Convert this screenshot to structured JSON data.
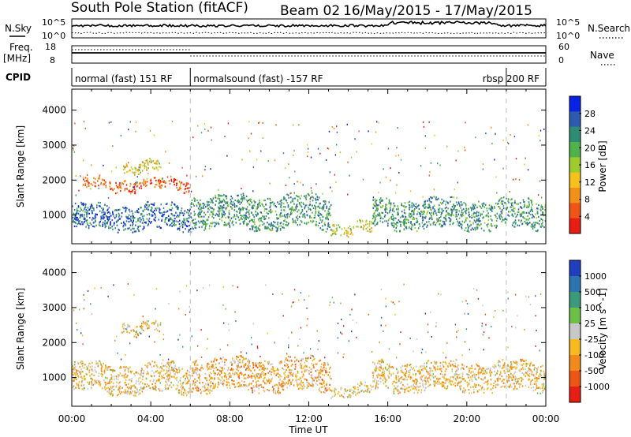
{
  "header": {
    "station": "South Pole Station (fitACF)",
    "beam": "Beam 02",
    "dates": "16/May/2015 - 17/May/2015"
  },
  "side_labels": {
    "n_sky": "N.Sky",
    "freq": "Freq.",
    "mhz": "[MHz]",
    "cpid": "CPID",
    "n_search": "N.Search",
    "nave": "Nave"
  },
  "mini_axes": {
    "n_sky_ticks": [
      "10^5",
      "10^0"
    ],
    "n_search_ticks": [
      "10^5",
      "10^0"
    ],
    "freq_ticks": [
      "18",
      "8"
    ],
    "nave_ticks": [
      "60",
      "0"
    ]
  },
  "cpid_segments": [
    {
      "label": "normal (fast) 151 RF",
      "start_h": 0,
      "end_h": 6
    },
    {
      "label": "normalsound (fast) -157 RF",
      "start_h": 6,
      "end_h": 22
    },
    {
      "label": "rbsp 200 RF",
      "start_h": 22,
      "end_h": 24
    }
  ],
  "x_axis": {
    "label": "Time UT",
    "ticks": [
      "00:00",
      "04:00",
      "08:00",
      "12:00",
      "16:00",
      "20:00",
      "00:00"
    ],
    "range_h": [
      0,
      24
    ]
  },
  "y_axis": {
    "label": "Slant Range [km]",
    "ticks": [
      "1000",
      "2000",
      "3000",
      "4000"
    ],
    "range_km": [
      180,
      4600
    ]
  },
  "power_colorbar": {
    "title": "Power [dB]",
    "ticks": [
      "4",
      "8",
      "12",
      "16",
      "20",
      "24",
      "28"
    ],
    "colors": [
      "#0a22e6",
      "#2c5bb0",
      "#2f8c74",
      "#4fb24a",
      "#9ccd2c",
      "#f6c11c",
      "#f39018",
      "#ee5516",
      "#e81e14"
    ]
  },
  "velocity_colorbar": {
    "title": "Velocity [m s^-1]",
    "ticks": [
      "1000",
      "500",
      "100",
      "25",
      "-25",
      "-100",
      "-500",
      "-1000"
    ],
    "colors": [
      "#1f3fbf",
      "#2b74b0",
      "#3c9a7c",
      "#6cc046",
      "#c8c8c8",
      "#f6b91e",
      "#f08a1a",
      "#ec5516",
      "#e81e14"
    ]
  },
  "chart_data": {
    "type": "heatmap",
    "title": "South Pole Station (fitACF)   Beam 02   16/May/2015 - 17/May/2015",
    "xlabel": "Time UT",
    "ylabel": "Slant Range [km]",
    "xlim_hours": [
      0,
      24
    ],
    "ylim_km": [
      180,
      4600
    ],
    "panels": [
      {
        "name": "Power [dB]",
        "colorbar_range": [
          0,
          32
        ],
        "echo_regions": [
          {
            "t_start": 0.0,
            "t_end": 6.0,
            "range_center_km": 950,
            "range_width_km": 700,
            "level": 26
          },
          {
            "t_start": 6.0,
            "t_end": 13.1,
            "range_center_km": 1100,
            "range_width_km": 900,
            "level": 22
          },
          {
            "t_start": 13.1,
            "t_end": 15.2,
            "range_center_km": 650,
            "range_width_km": 300,
            "level": 14
          },
          {
            "t_start": 15.2,
            "t_end": 24.0,
            "range_center_km": 1050,
            "range_width_km": 800,
            "level": 22
          },
          {
            "t_start": 2.5,
            "t_end": 4.5,
            "range_center_km": 2400,
            "range_width_km": 300,
            "level": 14
          },
          {
            "t_start": 0.5,
            "t_end": 6.0,
            "range_center_km": 1900,
            "range_width_km": 300,
            "level": 6
          }
        ]
      },
      {
        "name": "Velocity [m s^-1]",
        "colorbar_range": [
          -1000,
          1000
        ],
        "echo_regions": [
          {
            "t_start": 0.0,
            "t_end": 6.0,
            "range_center_km": 1000,
            "range_width_km": 800,
            "level": -200
          },
          {
            "t_start": 6.0,
            "t_end": 13.1,
            "range_center_km": 1100,
            "range_width_km": 900,
            "level": -300
          },
          {
            "t_start": 13.1,
            "t_end": 15.2,
            "range_center_km": 650,
            "range_width_km": 300,
            "level": -150
          },
          {
            "t_start": 15.2,
            "t_end": 24.0,
            "range_center_km": 1050,
            "range_width_km": 800,
            "level": -200
          },
          {
            "t_start": 2.5,
            "t_end": 4.5,
            "range_center_km": 2450,
            "range_width_km": 300,
            "level": -150
          }
        ]
      }
    ]
  }
}
